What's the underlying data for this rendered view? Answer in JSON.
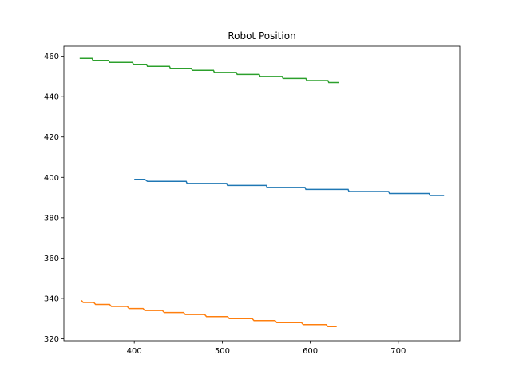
{
  "chart_data": {
    "type": "line",
    "title": "Robot Position",
    "xlabel": "",
    "ylabel": "",
    "xlim": [
      320,
      770
    ],
    "ylim": [
      319,
      465
    ],
    "xticks": [
      400,
      500,
      600,
      700
    ],
    "yticks": [
      320,
      340,
      360,
      380,
      400,
      420,
      440,
      460
    ],
    "grid": false,
    "series": [
      {
        "color": "#1f77b4",
        "x": [
          400,
          412,
          415,
          459,
          460,
          505,
          506,
          550,
          551,
          594,
          595,
          643,
          644,
          689,
          690,
          735,
          736,
          752
        ],
        "y": [
          399,
          399,
          398,
          398,
          397,
          397,
          396,
          396,
          395,
          395,
          394,
          394,
          393,
          393,
          392,
          392,
          391,
          391
        ]
      },
      {
        "color": "#ff7f0e",
        "x": [
          340,
          342,
          354,
          356,
          372,
          374,
          392,
          394,
          410,
          412,
          432,
          434,
          456,
          458,
          480,
          482,
          506,
          508,
          534,
          536,
          560,
          562,
          590,
          592,
          618,
          620,
          630
        ],
        "y": [
          339,
          338,
          338,
          337,
          337,
          336,
          336,
          335,
          335,
          334,
          334,
          333,
          333,
          332,
          332,
          331,
          331,
          330,
          330,
          329,
          329,
          328,
          328,
          327,
          327,
          326,
          326
        ]
      },
      {
        "color": "#2ca02c",
        "x": [
          338,
          352,
          353,
          371,
          372,
          398,
          399,
          414,
          415,
          440,
          441,
          465,
          466,
          490,
          491,
          516,
          517,
          542,
          543,
          568,
          569,
          595,
          596,
          620,
          621,
          633
        ],
        "y": [
          459,
          459,
          458,
          458,
          457,
          457,
          456,
          456,
          455,
          455,
          454,
          454,
          453,
          453,
          452,
          452,
          451,
          451,
          450,
          450,
          449,
          449,
          448,
          448,
          447,
          447
        ]
      }
    ]
  }
}
